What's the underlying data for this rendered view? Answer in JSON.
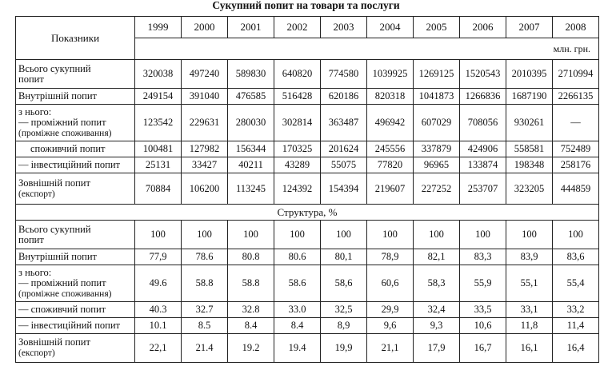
{
  "title": "Сукупний попит на товари та послуги",
  "header": {
    "indicator_label": "Показники",
    "years": [
      "1999",
      "2000",
      "2001",
      "2002",
      "2003",
      "2004",
      "2005",
      "2006",
      "2007",
      "2008"
    ],
    "unit": "млн. грн."
  },
  "section1": {
    "rows": [
      {
        "label": [
          "Всього сукупний",
          "попит"
        ],
        "values": [
          "320038",
          "497240",
          "589830",
          "640820",
          "774580",
          "1039925",
          "1269125",
          "1520543",
          "2010395",
          "2710994"
        ]
      },
      {
        "label": [
          "Внутрішній попит"
        ],
        "values": [
          "249154",
          "391040",
          "476585",
          "516428",
          "620186",
          "820318",
          "1041873",
          "1266836",
          "1687190",
          "2266135"
        ]
      },
      {
        "label": [
          "з нього:",
          "— проміжний попит",
          "(проміжне споживання)"
        ],
        "values": [
          "123542",
          "229631",
          "280030",
          "302814",
          "363487",
          "496942",
          "607029",
          "708056",
          "930261",
          "—"
        ]
      },
      {
        "label": [
          "споживчий попит"
        ],
        "values": [
          "100481",
          "127982",
          "156344",
          "170325",
          "201624",
          "245556",
          "337879",
          "424906",
          "558581",
          "752489"
        ]
      },
      {
        "label": [
          "— інвестиційний попит"
        ],
        "values": [
          "25131",
          "33427",
          "40211",
          "43289",
          "55075",
          "77820",
          "96965",
          "133874",
          "198348",
          "258176"
        ]
      },
      {
        "label": [
          "Зовнішній попит",
          "(експорт)"
        ],
        "values": [
          "70884",
          "106200",
          "113245",
          "124392",
          "154394",
          "219607",
          "227252",
          "253707",
          "323205",
          "444859"
        ]
      }
    ]
  },
  "section2": {
    "title": "Структура, %",
    "rows": [
      {
        "label": [
          "Всього сукупний",
          "попит"
        ],
        "values": [
          "100",
          "100",
          "100",
          "100",
          "100",
          "100",
          "100",
          "100",
          "100",
          "100"
        ]
      },
      {
        "label": [
          "Внутрішній попит"
        ],
        "values": [
          "77,9",
          "78.6",
          "80.8",
          "80.6",
          "80,1",
          "78,9",
          "82,1",
          "83,3",
          "83,9",
          "83,6"
        ]
      },
      {
        "label": [
          "з нього:",
          "— проміжний попит",
          "(проміжне споживання)"
        ],
        "values": [
          "49.6",
          "58.8",
          "58.8",
          "58.6",
          "58,6",
          "60,6",
          "58,3",
          "55,9",
          "55,1",
          "55,4"
        ]
      },
      {
        "label": [
          "— споживчий попит"
        ],
        "values": [
          "40.3",
          "32.7",
          "32.8",
          "33.0",
          "32,5",
          "29,9",
          "32,4",
          "33,5",
          "33,1",
          "33,2"
        ]
      },
      {
        "label": [
          "— інвестиційний попит"
        ],
        "values": [
          "10.1",
          "8.5",
          "8.4",
          "8.4",
          "8,9",
          "9,6",
          "9,3",
          "10,6",
          "11,8",
          "11,4"
        ]
      },
      {
        "label": [
          "Зовнішній попит",
          "(експорт)"
        ],
        "values": [
          "22,1",
          "21.4",
          "19.2",
          "19.4",
          "19,9",
          "21,1",
          "17,9",
          "16,7",
          "16,1",
          "16,4"
        ]
      }
    ]
  }
}
